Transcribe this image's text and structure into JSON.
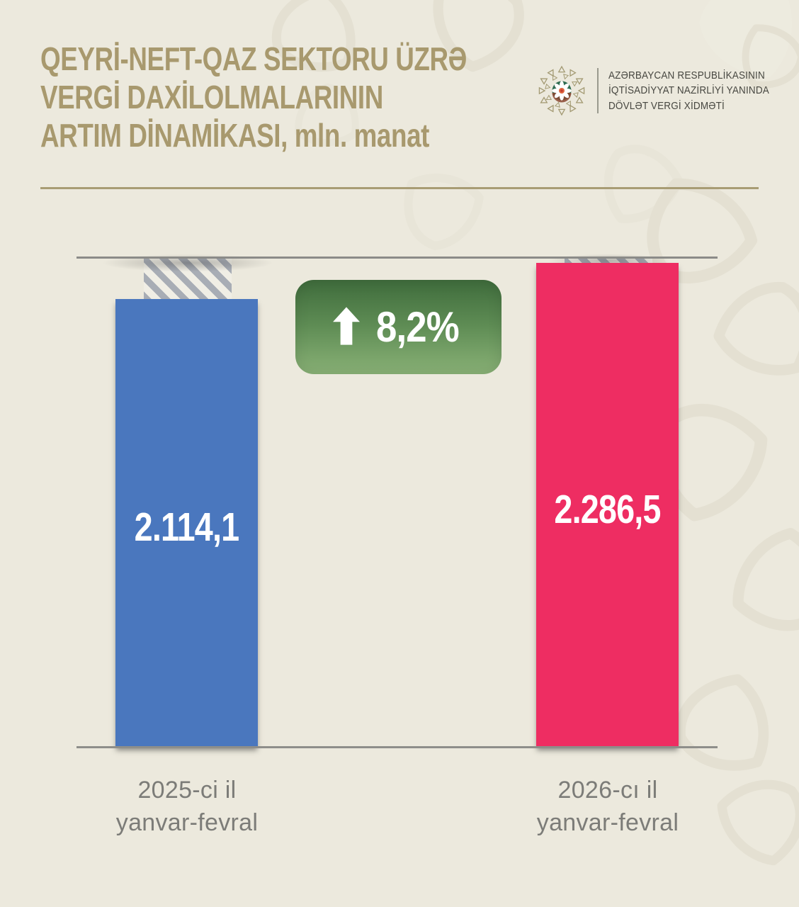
{
  "page": {
    "background_color": "#ECE9DD"
  },
  "title": {
    "lines": [
      "QEYRİ-NEFT-QAZ SEKTORU ÜZRƏ",
      "VERGİ DAXİLOLMALARININ",
      "ARTIM DİNAMİKASI, mln. manat"
    ],
    "color": "#A8996E"
  },
  "logo": {
    "emblem": "state-tax-service-emblem",
    "org_lines": [
      "AZƏRBAYCAN RESPUBLİKASININ",
      "İQTİSADİYYAT NAZİRLİYİ YANINDA",
      "DÖVLƏT VERGİ XİDMƏTİ"
    ]
  },
  "growth_badge": {
    "direction": "up",
    "value": "8,2%",
    "bg_top_color": "#3F6C3C",
    "bg_bottom_color": "#89B176"
  },
  "chart_data": {
    "type": "bar",
    "title": "QEYRİ-NEFT-QAZ SEKTORU ÜZRƏ VERGİ DAXİLOLMALARININ ARTIM DİNAMİKASI",
    "unit": "mln. manat",
    "categories": [
      "2025-ci il yanvar-fevral",
      "2026-cı il yanvar-fevral"
    ],
    "category_lines": [
      [
        "2025-ci il",
        "yanvar-fevral"
      ],
      [
        "2026-cı il",
        "yanvar-fevral"
      ]
    ],
    "values": [
      2114.1,
      2286.5
    ],
    "value_labels": [
      "2.114,1",
      "2.286,5"
    ],
    "series_colors": [
      "#4A77BE",
      "#EE2D62"
    ],
    "growth_percent": 8.2,
    "growth_percent_label": "8,2%",
    "ylim": [
      0,
      2286.5
    ],
    "grid": false,
    "legend": false
  }
}
